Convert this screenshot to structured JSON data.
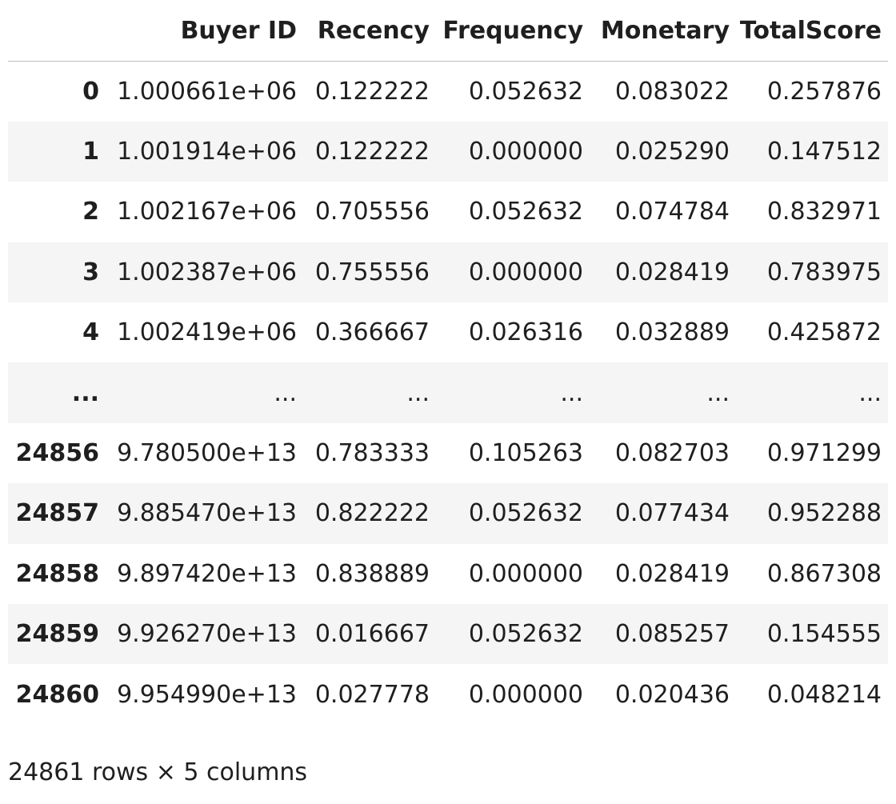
{
  "table": {
    "columns": [
      "Buyer ID",
      "Recency",
      "Frequency",
      "Monetary",
      "TotalScore"
    ],
    "rows": [
      {
        "index": "0",
        "cells": [
          "1.000661e+06",
          "0.122222",
          "0.052632",
          "0.083022",
          "0.257876"
        ]
      },
      {
        "index": "1",
        "cells": [
          "1.001914e+06",
          "0.122222",
          "0.000000",
          "0.025290",
          "0.147512"
        ]
      },
      {
        "index": "2",
        "cells": [
          "1.002167e+06",
          "0.705556",
          "0.052632",
          "0.074784",
          "0.832971"
        ]
      },
      {
        "index": "3",
        "cells": [
          "1.002387e+06",
          "0.755556",
          "0.000000",
          "0.028419",
          "0.783975"
        ]
      },
      {
        "index": "4",
        "cells": [
          "1.002419e+06",
          "0.366667",
          "0.026316",
          "0.032889",
          "0.425872"
        ]
      },
      {
        "index": "...",
        "cells": [
          "...",
          "...",
          "...",
          "...",
          "..."
        ]
      },
      {
        "index": "24856",
        "cells": [
          "9.780500e+13",
          "0.783333",
          "0.105263",
          "0.082703",
          "0.971299"
        ]
      },
      {
        "index": "24857",
        "cells": [
          "9.885470e+13",
          "0.822222",
          "0.052632",
          "0.077434",
          "0.952288"
        ]
      },
      {
        "index": "24858",
        "cells": [
          "9.897420e+13",
          "0.838889",
          "0.000000",
          "0.028419",
          "0.867308"
        ]
      },
      {
        "index": "24859",
        "cells": [
          "9.926270e+13",
          "0.016667",
          "0.052632",
          "0.085257",
          "0.154555"
        ]
      },
      {
        "index": "24860",
        "cells": [
          "9.954990e+13",
          "0.027778",
          "0.000000",
          "0.020436",
          "0.048214"
        ]
      }
    ]
  },
  "shape_info": "24861 rows × 5 columns"
}
